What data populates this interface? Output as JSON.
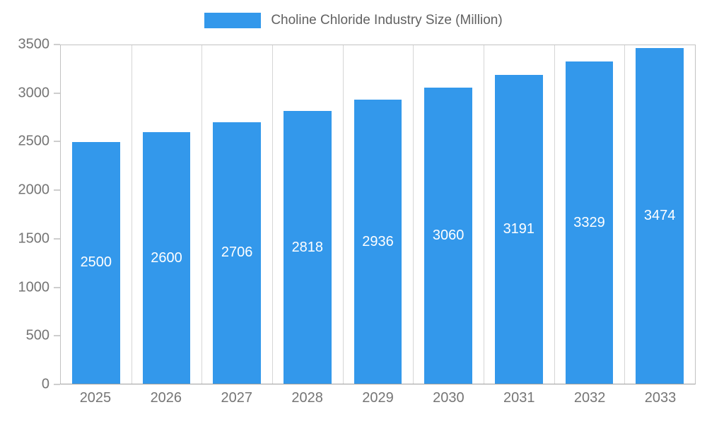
{
  "legend": {
    "title": "Choline Chloride Industry Size (Million)"
  },
  "chart_data": {
    "type": "bar",
    "title": "Choline Chloride Industry Size (Million)",
    "categories": [
      "2025",
      "2026",
      "2027",
      "2028",
      "2029",
      "2030",
      "2031",
      "2032",
      "2033"
    ],
    "values": [
      2500,
      2600,
      2706,
      2818,
      2936,
      3060,
      3191,
      3329,
      3474
    ],
    "xlabel": "",
    "ylabel": "",
    "ylim": [
      0,
      3500
    ],
    "yticks": [
      0,
      500,
      1000,
      1500,
      2000,
      2500,
      3000,
      3500
    ],
    "legend_position": "top",
    "grid": "vertical-only",
    "bar_color": "#3398EB",
    "bar_label_color": "#ffffff",
    "axis_text_color": "#757575"
  }
}
